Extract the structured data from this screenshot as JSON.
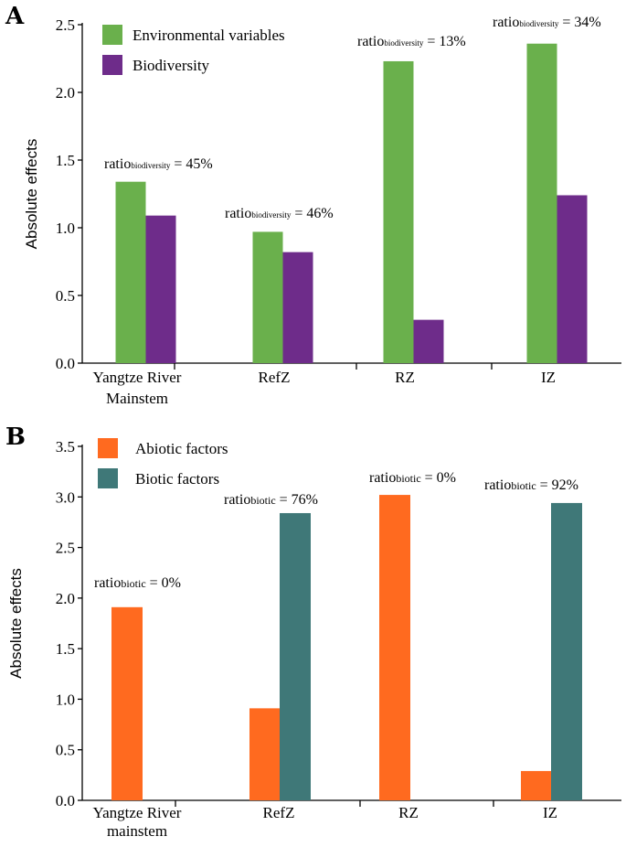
{
  "chart_data": [
    {
      "panel": "A",
      "type": "bar",
      "ylabel": "Absolute effects",
      "ylim": [
        0,
        2.5
      ],
      "yticks": [
        "0.0",
        "0.5",
        "1.0",
        "1.5",
        "2.0",
        "2.5"
      ],
      "categories": [
        [
          "Yangtze River",
          "Mainstem"
        ],
        [
          "RefZ"
        ],
        [
          "RZ"
        ],
        [
          "IZ"
        ]
      ],
      "series": [
        {
          "name": "Environmental variables",
          "color": "#6ab04c",
          "values": [
            1.34,
            0.97,
            2.23,
            2.36
          ]
        },
        {
          "name": "Biodiversity",
          "color": "#6e2c8a",
          "values": [
            1.09,
            0.82,
            0.32,
            1.24
          ]
        }
      ],
      "annotations": [
        {
          "main": "ratio",
          "sub": "biodiversity",
          "value": " = 45%"
        },
        {
          "main": "ratio",
          "sub": "biodiversity",
          "value": " = 46%"
        },
        {
          "main": "ratio",
          "sub": "biodiversity",
          "value": " = 13%"
        },
        {
          "main": "ratio",
          "sub": "biodiversity",
          "value": " = 34%"
        }
      ]
    },
    {
      "panel": "B",
      "type": "bar",
      "ylabel": "Absolute effects",
      "ylim": [
        0,
        3.5
      ],
      "yticks": [
        "0.0",
        "0.5",
        "1.0",
        "1.5",
        "2.0",
        "2.5",
        "3.0",
        "3.5"
      ],
      "categories": [
        [
          "Yangtze River",
          "mainstem"
        ],
        [
          "RefZ"
        ],
        [
          "RZ"
        ],
        [
          "IZ"
        ]
      ],
      "series": [
        {
          "name": "Abiotic factors",
          "color": "#ff6a1f",
          "values": [
            1.91,
            0.91,
            3.02,
            0.29
          ]
        },
        {
          "name": "Biotic factors",
          "color": "#3f7878",
          "values": [
            0,
            2.84,
            0,
            2.94
          ]
        }
      ],
      "annotations": [
        {
          "main": "ratio",
          "sub": "biotic",
          "value": " = 0%"
        },
        {
          "main": "ratio",
          "sub": "biotic",
          "value": " = 76%"
        },
        {
          "main": "ratio",
          "sub": "biotic",
          "value": " = 0%"
        },
        {
          "main": "ratio",
          "sub": "biotic",
          "value": " = 92%"
        }
      ]
    }
  ]
}
